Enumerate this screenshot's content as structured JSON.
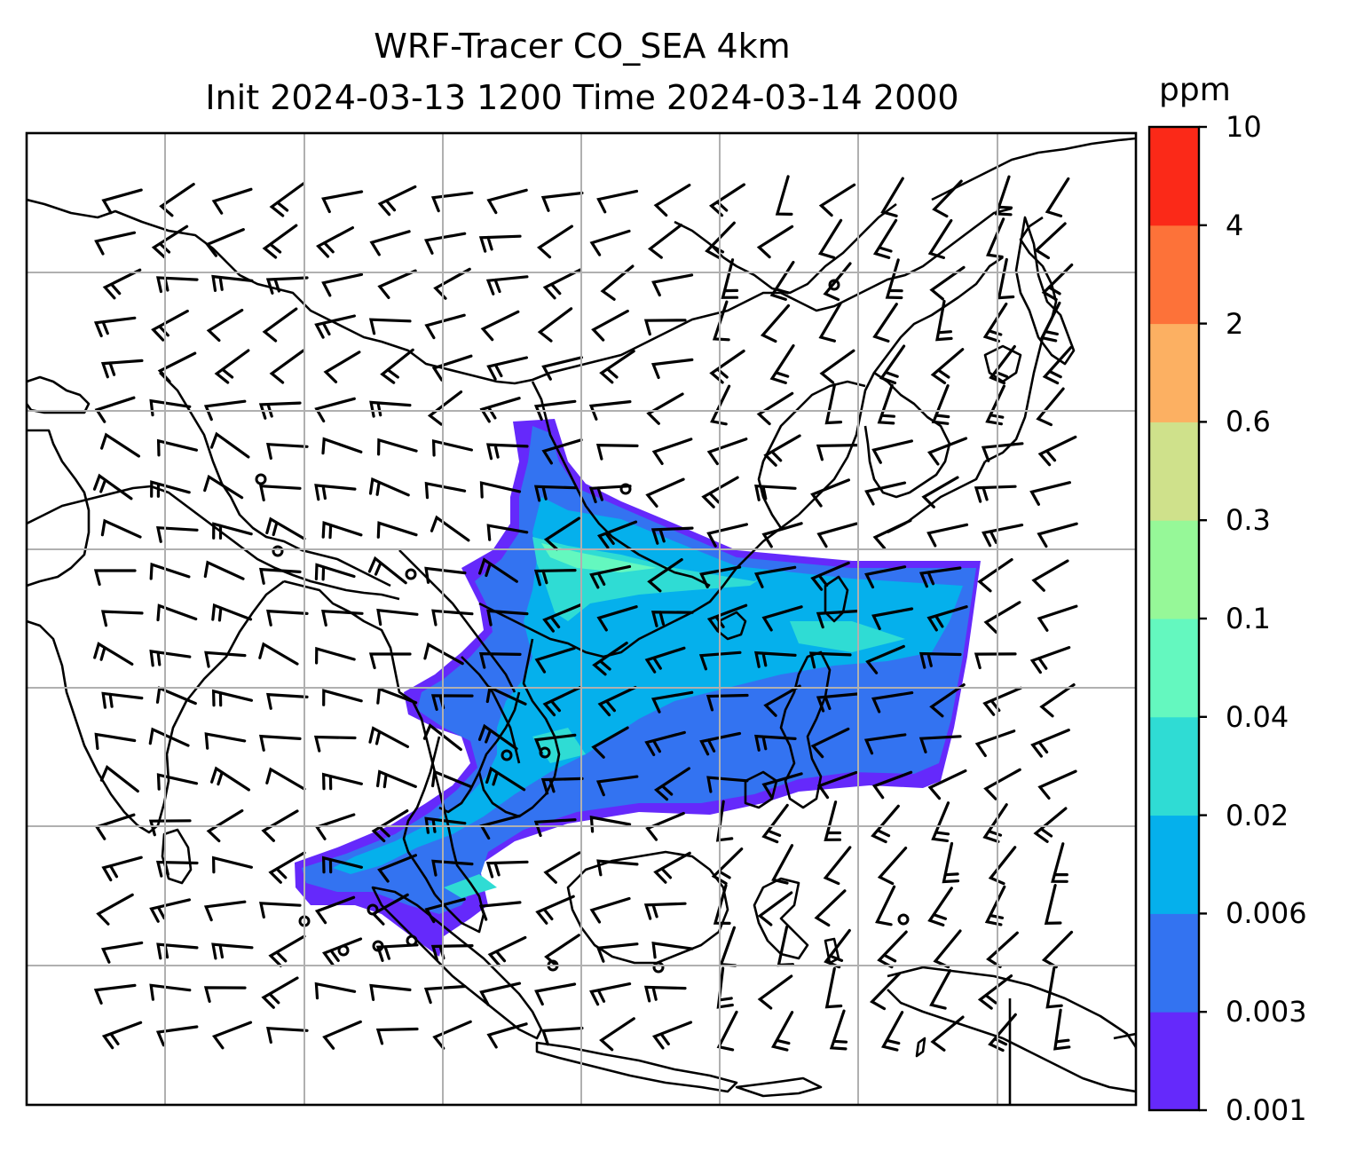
{
  "figure": {
    "title_line1": "WRF-Tracer CO_SEA 4km",
    "title_line2": "Init 2024-03-13 1200 Time 2024-03-14 2000"
  },
  "colorbar": {
    "unit": "ppm",
    "levels": [
      "0.001",
      "0.003",
      "0.006",
      "0.02",
      "0.04",
      "0.1",
      "0.3",
      "0.6",
      "2",
      "4",
      "10"
    ],
    "colors": [
      "#6529fb",
      "#3373f1",
      "#05b0ec",
      "#2fdcd4",
      "#64f8bf",
      "#96f898",
      "#cfe18b",
      "#fcb062",
      "#fd7239",
      "#fb2918"
    ]
  },
  "map": {
    "field": "CO tracer concentration",
    "coastline_color": "#000000",
    "gridline_color": "#b0b0b0",
    "wind_barb_color": "#000000"
  }
}
